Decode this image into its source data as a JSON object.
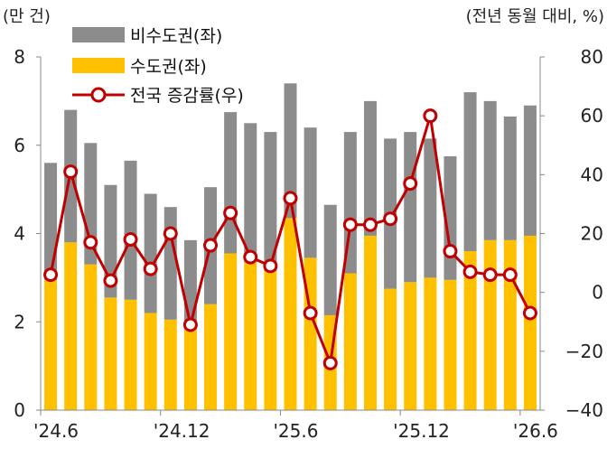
{
  "chart_data": {
    "type": "bar",
    "left_unit": "(만 건)",
    "right_unit": "(전년 동월 대비, %)",
    "legend": {
      "non_capital": "비수도권(좌)",
      "capital": "수도권(좌)",
      "growth": "전국 증감률(우)"
    },
    "left_axis": {
      "ylim": [
        0,
        8
      ],
      "ticks": [
        "0",
        "2",
        "4",
        "6",
        "8"
      ]
    },
    "right_axis": {
      "ylim": [
        -40,
        80
      ],
      "ticks": [
        "-40",
        "-20",
        "0",
        "20",
        "40",
        "60",
        "80"
      ]
    },
    "x_tick_labels": [
      "'24.6",
      "'24.12",
      "'25.6",
      "'25.12",
      "'26.6"
    ],
    "x_tick_index": [
      0,
      6,
      12,
      18,
      24
    ],
    "capital": [
      2.95,
      3.8,
      3.3,
      2.55,
      2.5,
      2.2,
      2.05,
      2.0,
      2.4,
      3.55,
      3.35,
      3.15,
      4.35,
      3.45,
      2.15,
      3.1,
      3.95,
      2.75,
      2.9,
      3.0,
      2.95,
      3.6,
      3.85,
      3.85,
      3.95
    ],
    "non_capital": [
      2.65,
      3.0,
      2.75,
      2.55,
      3.15,
      2.7,
      2.55,
      1.85,
      2.65,
      3.2,
      3.15,
      3.15,
      3.05,
      2.95,
      2.5,
      3.2,
      3.05,
      3.4,
      3.4,
      3.15,
      2.8,
      3.6,
      3.15,
      2.8,
      2.95
    ],
    "growth": [
      6,
      41,
      17,
      4,
      18,
      8,
      20,
      -11,
      16,
      27,
      12,
      9,
      32,
      -7,
      -24,
      23,
      23,
      25,
      37,
      60,
      14,
      7,
      6,
      6,
      -7
    ],
    "colors": {
      "non_capital": "#8c8c8c",
      "capital": "#ffc000",
      "growth": "#c00000"
    }
  }
}
